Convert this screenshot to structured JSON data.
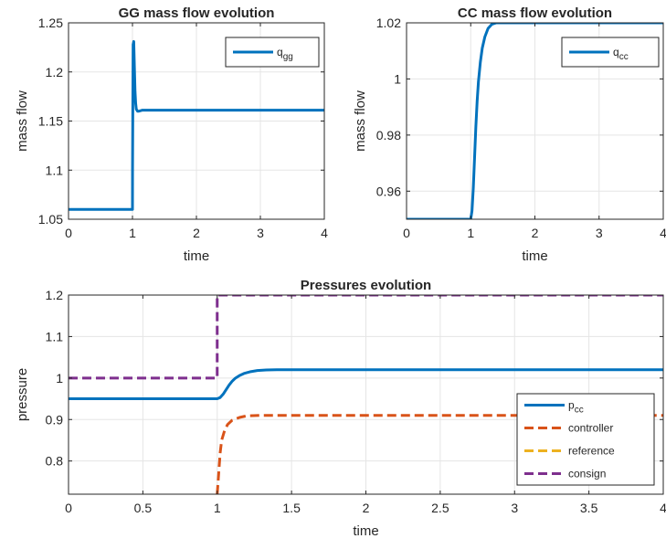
{
  "figure": {
    "colors": {
      "blue": "#0072BD",
      "orange": "#D95319",
      "yellow": "#EDB120",
      "purple": "#7E2F8E",
      "grid": "#e5e5e5",
      "axis": "#262626"
    }
  },
  "chart_data": [
    {
      "type": "line",
      "title": "GG mass flow evolution",
      "xlabel": "time",
      "ylabel": "mass flow",
      "xlim": [
        0,
        4
      ],
      "ylim": [
        1.05,
        1.25
      ],
      "xticks": [
        0,
        1,
        2,
        3,
        4
      ],
      "xtick_labels": [
        "0",
        "1",
        "2",
        "3",
        "4"
      ],
      "yticks": [
        1.05,
        1.1,
        1.15,
        1.2,
        1.25
      ],
      "ytick_labels": [
        "1.05",
        "1.1",
        "1.15",
        "1.2",
        "1.25"
      ],
      "grid": true,
      "legend_position": "top-right",
      "series": [
        {
          "name": "q",
          "name_sub": "gg",
          "color": "#0072BD",
          "style": "solid",
          "x": [
            0,
            1.0,
            1.001,
            1.01,
            1.02,
            1.03,
            1.04,
            1.05,
            1.06,
            1.08,
            1.1,
            1.15,
            1.2,
            1.3,
            4
          ],
          "y": [
            1.06,
            1.06,
            1.1,
            1.228,
            1.231,
            1.205,
            1.18,
            1.168,
            1.162,
            1.16,
            1.16,
            1.161,
            1.161,
            1.161,
            1.161
          ]
        }
      ]
    },
    {
      "type": "line",
      "title": "CC mass flow evolution",
      "xlabel": "time",
      "ylabel": "mass flow",
      "xlim": [
        0,
        4
      ],
      "ylim": [
        0.95,
        1.02
      ],
      "xticks": [
        0,
        1,
        2,
        3,
        4
      ],
      "xtick_labels": [
        "0",
        "1",
        "2",
        "3",
        "4"
      ],
      "yticks": [
        0.96,
        0.98,
        1.0,
        1.02
      ],
      "ytick_labels": [
        "0.96",
        "0.98",
        "1",
        "1.02"
      ],
      "grid": true,
      "legend_position": "top-right",
      "series": [
        {
          "name": "q",
          "name_sub": "cc",
          "color": "#0072BD",
          "style": "solid",
          "x": [
            0,
            1.0,
            1.02,
            1.04,
            1.06,
            1.08,
            1.1,
            1.12,
            1.15,
            1.18,
            1.22,
            1.27,
            1.33,
            1.4,
            1.5,
            4
          ],
          "y": [
            0.95,
            0.95,
            0.953,
            0.961,
            0.972,
            0.983,
            0.992,
            0.999,
            1.006,
            1.011,
            1.015,
            1.018,
            1.0195,
            1.02,
            1.02,
            1.02
          ]
        }
      ]
    },
    {
      "type": "line",
      "title": "Pressures evolution",
      "xlabel": "time",
      "ylabel": "pressure",
      "xlim": [
        0,
        4
      ],
      "ylim": [
        0.72,
        1.2
      ],
      "xticks": [
        0,
        0.5,
        1,
        1.5,
        2,
        2.5,
        3,
        3.5,
        4
      ],
      "xtick_labels": [
        "0",
        "0.5",
        "1",
        "1.5",
        "2",
        "2.5",
        "3",
        "3.5",
        "4"
      ],
      "yticks": [
        0.8,
        0.9,
        1.0,
        1.1,
        1.2
      ],
      "ytick_labels": [
        "0.8",
        "0.9",
        "1",
        "1.1",
        "1.2"
      ],
      "grid": true,
      "legend_position": "bottom-right",
      "series": [
        {
          "name": "p",
          "name_sub": "cc",
          "color": "#0072BD",
          "style": "solid",
          "x": [
            0,
            1.0,
            1.02,
            1.04,
            1.06,
            1.08,
            1.1,
            1.12,
            1.15,
            1.18,
            1.22,
            1.27,
            1.33,
            1.4,
            1.5,
            4
          ],
          "y": [
            0.95,
            0.95,
            0.953,
            0.961,
            0.972,
            0.983,
            0.992,
            0.999,
            1.006,
            1.011,
            1.015,
            1.018,
            1.0195,
            1.02,
            1.02,
            1.02
          ]
        },
        {
          "name": "controller",
          "color": "#D95319",
          "style": "dashed",
          "x": [
            1.0,
            1.01,
            1.02,
            1.03,
            1.05,
            1.07,
            1.1,
            1.15,
            1.2,
            1.3,
            1.4,
            4
          ],
          "y": [
            0.72,
            0.77,
            0.82,
            0.85,
            0.874,
            0.888,
            0.898,
            0.905,
            0.909,
            0.91,
            0.91,
            0.91
          ]
        },
        {
          "name": "reference",
          "color": "#EDB120",
          "style": "dashed",
          "x": [],
          "y": []
        },
        {
          "name": "consign",
          "color": "#7E2F8E",
          "style": "dashed",
          "x": [
            0,
            1.0,
            1.0,
            4
          ],
          "y": [
            1.0,
            1.0,
            1.2,
            1.2
          ]
        }
      ]
    }
  ]
}
